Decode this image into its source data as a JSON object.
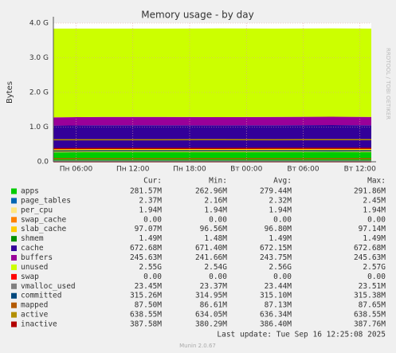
{
  "chart_data": {
    "type": "stacked-area",
    "title": "Memory usage - by day",
    "y_label": "Bytes",
    "side_text": "RRDTOOL / TOBI OETIKER",
    "x": [
      3.6,
      9,
      15,
      21,
      27,
      33,
      37.2
    ],
    "xlim": [
      3.6,
      37.2
    ],
    "xticks": [
      {
        "value": 6,
        "label": "Пн 06:00"
      },
      {
        "value": 12,
        "label": "Пн 12:00"
      },
      {
        "value": 18,
        "label": "Пн 18:00"
      },
      {
        "value": 24,
        "label": "Вт 00:00"
      },
      {
        "value": 30,
        "label": "Вт 06:00"
      },
      {
        "value": 36,
        "label": "Вт 12:00"
      }
    ],
    "ylim": [
      0,
      4
    ],
    "yticks": [
      {
        "value": 0,
        "label": "0.0"
      },
      {
        "value": 1,
        "label": "1.0 G"
      },
      {
        "value": 2,
        "label": "2.0 G"
      },
      {
        "value": 3,
        "label": "3.0 G"
      },
      {
        "value": 4,
        "label": "4.0 G"
      }
    ],
    "grid": true,
    "stats_headers": [
      "Cur:",
      "Min:",
      "Avg:",
      "Max:"
    ],
    "series": [
      {
        "name": "apps",
        "color": "#00cc00",
        "stack": true,
        "values": [
          0.27,
          0.28,
          0.28,
          0.275,
          0.28,
          0.285,
          0.28
        ],
        "stats": [
          "281.57M",
          "262.96M",
          "279.44M",
          "291.86M"
        ]
      },
      {
        "name": "page_tables",
        "color": "#0066b3",
        "stack": true,
        "values": [
          0.002,
          0.002,
          0.002,
          0.002,
          0.002,
          0.002,
          0.002
        ],
        "stats": [
          "2.37M",
          "2.16M",
          "2.32M",
          "2.45M"
        ]
      },
      {
        "name": "per_cpu",
        "color": "#ffe680",
        "stack": true,
        "values": [
          0.002,
          0.002,
          0.002,
          0.002,
          0.002,
          0.002,
          0.002
        ],
        "stats": [
          "1.94M",
          "1.94M",
          "1.94M",
          "1.94M"
        ]
      },
      {
        "name": "swap_cache",
        "color": "#ff8000",
        "stack": true,
        "values": [
          0,
          0,
          0,
          0,
          0,
          0,
          0
        ],
        "stats": [
          "0.00",
          "0.00",
          "0.00",
          "0.00"
        ]
      },
      {
        "name": "slab_cache",
        "color": "#ffcc00",
        "stack": true,
        "values": [
          0.097,
          0.097,
          0.097,
          0.097,
          0.097,
          0.097,
          0.097
        ],
        "stats": [
          "97.07M",
          "96.56M",
          "96.80M",
          "97.14M"
        ]
      },
      {
        "name": "shmem",
        "color": "#008f00",
        "stack": true,
        "values": [
          0.0015,
          0.0015,
          0.0015,
          0.0015,
          0.0015,
          0.0015,
          0.0015
        ],
        "stats": [
          "1.49M",
          "1.48M",
          "1.49M",
          "1.49M"
        ]
      },
      {
        "name": "cache",
        "color": "#330099",
        "stack": true,
        "values": [
          0.67,
          0.67,
          0.67,
          0.67,
          0.67,
          0.67,
          0.67
        ],
        "stats": [
          "672.68M",
          "671.40M",
          "672.15M",
          "672.68M"
        ]
      },
      {
        "name": "buffers",
        "color": "#990099",
        "stack": true,
        "values": [
          0.24,
          0.24,
          0.24,
          0.24,
          0.24,
          0.24,
          0.24
        ],
        "stats": [
          "245.63M",
          "241.66M",
          "243.75M",
          "245.63M"
        ]
      },
      {
        "name": "unused",
        "color": "#ccff00",
        "stack": true,
        "values": [
          2.56,
          2.55,
          2.55,
          2.56,
          2.55,
          2.55,
          2.55
        ],
        "stats": [
          "2.55G",
          "2.54G",
          "2.56G",
          "2.57G"
        ]
      },
      {
        "name": "swap",
        "color": "#ff0000",
        "stack": false,
        "values": [
          0,
          0,
          0,
          0,
          0,
          0,
          0
        ],
        "stats": [
          "0.00",
          "0.00",
          "0.00",
          "0.00"
        ]
      },
      {
        "name": "vmalloc_used",
        "color": "#808080",
        "stack": false,
        "values": [
          0.023,
          0.023,
          0.023,
          0.023,
          0.023,
          0.023,
          0.023
        ],
        "stats": [
          "23.45M",
          "23.37M",
          "23.44M",
          "23.51M"
        ]
      },
      {
        "name": "committed",
        "color": "#00487d",
        "stack": false,
        "values": [
          0.31,
          0.315,
          0.315,
          0.315,
          0.315,
          0.315,
          0.315
        ],
        "stats": [
          "315.26M",
          "314.95M",
          "315.10M",
          "315.38M"
        ]
      },
      {
        "name": "mapped",
        "color": "#b35a00",
        "stack": false,
        "values": [
          0.087,
          0.087,
          0.087,
          0.087,
          0.087,
          0.087,
          0.087
        ],
        "stats": [
          "87.50M",
          "86.61M",
          "87.13M",
          "87.65M"
        ]
      },
      {
        "name": "active",
        "color": "#b38f00",
        "stack": false,
        "values": [
          0.635,
          0.636,
          0.636,
          0.637,
          0.636,
          0.637,
          0.638
        ],
        "stats": [
          "638.55M",
          "634.05M",
          "636.34M",
          "638.55M"
        ]
      },
      {
        "name": "inactive",
        "color": "#b30000",
        "stack": false,
        "values": [
          0.38,
          0.385,
          0.386,
          0.386,
          0.387,
          0.387,
          0.387
        ],
        "stats": [
          "387.58M",
          "380.29M",
          "386.40M",
          "387.76M"
        ]
      }
    ],
    "last_update": "Last update: Tue Sep 16 12:25:08 2025",
    "footer": "Munin 2.0.67"
  }
}
